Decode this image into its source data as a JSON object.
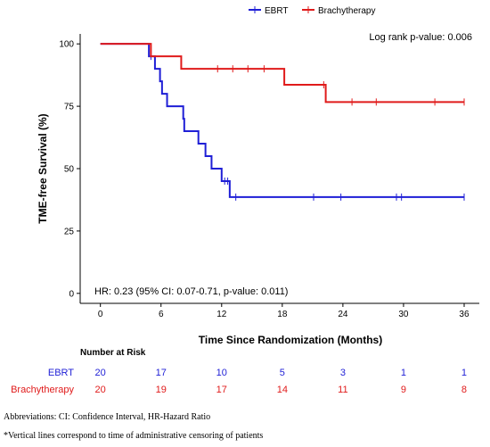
{
  "chart_data": {
    "type": "line",
    "step": true,
    "xlabel": "Time Since Randomization (Months)",
    "ylabel": "TME-free Survival (%)",
    "xlim": [
      -2,
      37.5
    ],
    "ylim": [
      -4,
      104
    ],
    "x_ticks": [
      0,
      6,
      12,
      18,
      24,
      30,
      36
    ],
    "y_ticks": [
      0,
      25,
      50,
      75,
      100
    ],
    "grid": false,
    "legend_position": "top",
    "series": [
      {
        "name": "EBRT",
        "color": "#1f1fd6",
        "steps": [
          [
            0,
            100
          ],
          [
            4.8,
            95
          ],
          [
            5.4,
            90
          ],
          [
            5.9,
            85
          ],
          [
            6.1,
            80
          ],
          [
            6.6,
            75
          ],
          [
            8.2,
            70
          ],
          [
            8.3,
            65
          ],
          [
            9.7,
            60
          ],
          [
            10.4,
            55
          ],
          [
            11,
            50
          ],
          [
            12,
            45
          ],
          [
            12.8,
            38.6
          ],
          [
            36,
            38.6
          ]
        ],
        "censor_times": [
          5,
          12.3,
          12.6,
          13.4,
          21.1,
          23.8,
          29.3,
          29.8,
          36
        ]
      },
      {
        "name": "Brachytherapy",
        "color": "#e01b1b",
        "steps": [
          [
            0,
            100
          ],
          [
            5,
            95
          ],
          [
            8,
            90
          ],
          [
            18.2,
            83.6
          ],
          [
            22.3,
            76.7
          ],
          [
            36,
            76.7
          ]
        ],
        "censor_times": [
          11.6,
          13.1,
          14.6,
          16.2,
          22.1,
          24.9,
          27.3,
          33.1,
          36
        ]
      }
    ],
    "annotations": {
      "log_rank": "Log rank p-value: 0.006",
      "hr": "HR: 0.23 (95% CI: 0.07-0.71, p-value: 0.011)"
    },
    "risk_table": {
      "title": "Number at Risk",
      "rows": [
        {
          "label": "EBRT",
          "color": "#1f1fd6",
          "values": [
            20,
            17,
            10,
            5,
            3,
            1,
            1
          ]
        },
        {
          "label": "Brachytherapy",
          "color": "#e01b1b",
          "values": [
            20,
            19,
            17,
            14,
            11,
            9,
            8
          ]
        }
      ]
    }
  },
  "footnotes": {
    "abbreviations": "Abbreviations: CI: Confidence Interval, HR-Hazard Ratio",
    "censoring": "*Vertical lines correspond to time of administrative censoring of patients"
  }
}
